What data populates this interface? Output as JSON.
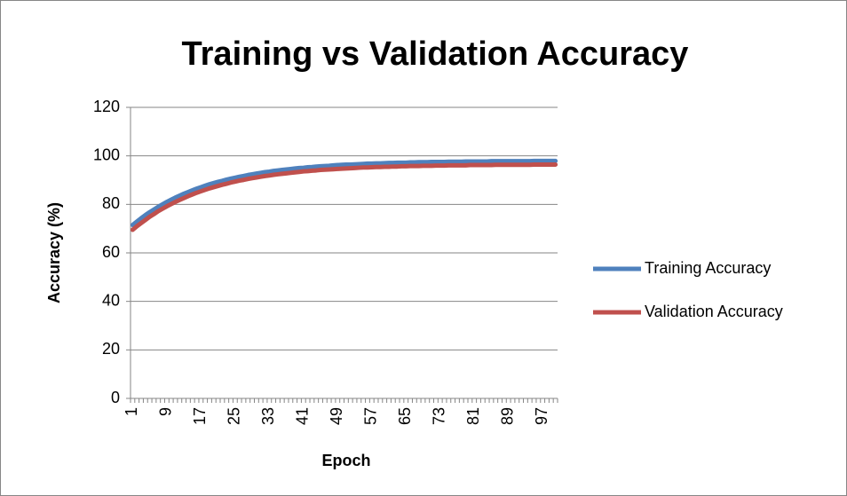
{
  "chart_data": {
    "type": "line",
    "title": "Training vs Validation Accuracy",
    "x_label": "Epoch",
    "y_label": "Accuracy (%)",
    "categories": [
      1,
      null,
      null,
      null,
      null,
      null,
      null,
      null,
      9,
      null,
      null,
      null,
      null,
      null,
      null,
      null,
      17,
      null,
      null,
      null,
      null,
      null,
      null,
      null,
      25,
      null,
      null,
      null,
      null,
      null,
      null,
      null,
      33,
      null,
      null,
      null,
      null,
      null,
      null,
      null,
      41,
      null,
      null,
      null,
      null,
      null,
      null,
      null,
      49,
      null,
      null,
      null,
      null,
      null,
      null,
      null,
      57,
      null,
      null,
      null,
      null,
      null,
      null,
      null,
      65,
      null,
      null,
      null,
      null,
      null,
      null,
      null,
      73,
      null,
      null,
      null,
      null,
      null,
      null,
      null,
      81,
      null,
      null,
      null,
      null,
      null,
      null,
      null,
      89,
      null,
      null,
      null,
      null,
      null,
      null,
      null,
      97,
      null,
      null,
      null
    ],
    "series": [
      {
        "name": "Training Accuracy",
        "color": "#4f81bd",
        "values": [
          71.5,
          72.9,
          74.3,
          75.6,
          76.8,
          77.9,
          79.0,
          80.0,
          81.0,
          81.9,
          82.8,
          83.6,
          84.4,
          85.1,
          85.8,
          86.5,
          87.1,
          87.7,
          88.3,
          88.8,
          89.3,
          89.7,
          90.2,
          90.6,
          91.0,
          91.4,
          91.7,
          92.1,
          92.4,
          92.7,
          93.0,
          93.3,
          93.5,
          93.8,
          94.0,
          94.2,
          94.4,
          94.6,
          94.8,
          95.0,
          95.1,
          95.3,
          95.4,
          95.6,
          95.7,
          95.8,
          95.9,
          96.1,
          96.2,
          96.3,
          96.4,
          96.4,
          96.5,
          96.6,
          96.7,
          96.8,
          96.8,
          96.9,
          96.9,
          97.0,
          97.1,
          97.1,
          97.2,
          97.2,
          97.2,
          97.3,
          97.3,
          97.4,
          97.4,
          97.4,
          97.5,
          97.5,
          97.5,
          97.5,
          97.6,
          97.6,
          97.6,
          97.6,
          97.7,
          97.7,
          97.7,
          97.7,
          97.7,
          97.7,
          97.8,
          97.8,
          97.8,
          97.8,
          97.8,
          97.8,
          97.8,
          97.8,
          97.8,
          97.8,
          97.9,
          97.9,
          97.9,
          97.9,
          97.9,
          97.9
        ]
      },
      {
        "name": "Validation Accuracy",
        "color": "#c0504d",
        "values": [
          69.5,
          71.0,
          72.3,
          73.6,
          74.9,
          76.0,
          77.2,
          78.2,
          79.2,
          80.1,
          81.0,
          81.8,
          82.6,
          83.4,
          84.1,
          84.8,
          85.4,
          86.0,
          86.6,
          87.1,
          87.6,
          88.1,
          88.5,
          89.0,
          89.4,
          89.8,
          90.1,
          90.5,
          90.8,
          91.1,
          91.4,
          91.7,
          91.9,
          92.2,
          92.4,
          92.6,
          92.8,
          93.0,
          93.2,
          93.4,
          93.6,
          93.7,
          93.9,
          94.0,
          94.2,
          94.3,
          94.4,
          94.5,
          94.6,
          94.7,
          94.8,
          94.9,
          95.0,
          95.1,
          95.2,
          95.2,
          95.3,
          95.4,
          95.4,
          95.5,
          95.5,
          95.6,
          95.6,
          95.7,
          95.7,
          95.8,
          95.8,
          95.8,
          95.9,
          95.9,
          95.9,
          96.0,
          96.0,
          96.0,
          96.1,
          96.1,
          96.1,
          96.1,
          96.1,
          96.2,
          96.2,
          96.2,
          96.2,
          96.2,
          96.2,
          96.3,
          96.3,
          96.3,
          96.3,
          96.3,
          96.3,
          96.3,
          96.3,
          96.3,
          96.4,
          96.4,
          96.4,
          96.4,
          96.4,
          96.4
        ]
      }
    ],
    "ylim": [
      0,
      120
    ],
    "yticks": [
      0,
      20,
      40,
      60,
      80,
      100,
      120
    ],
    "grid": true,
    "legend": "right"
  }
}
